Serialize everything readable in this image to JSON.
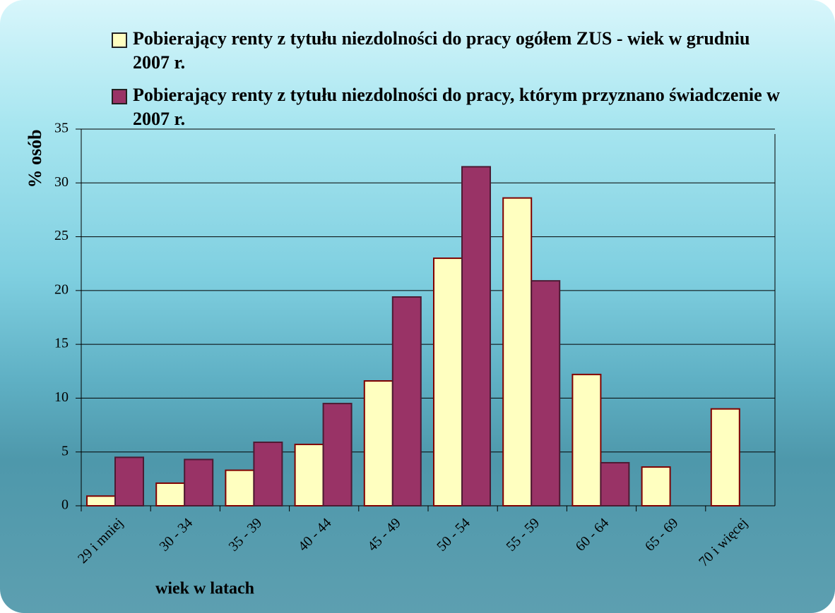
{
  "chart_data": {
    "type": "bar",
    "x_label": "wiek w latach",
    "y_label": "% osób",
    "categories": [
      "29 i mniej",
      "30 - 34",
      "35 - 39",
      "40 - 44",
      "45 - 49",
      "50 - 54",
      "55 - 59",
      "60 - 64",
      "65 - 69",
      "70 i więcej"
    ],
    "series": [
      {
        "name": "Pobierający renty z tytułu niezdolności do pracy ogółem ZUS - wiek w grudniu 2007 r.",
        "color": "#ffffc0",
        "values": [
          0.9,
          2.1,
          3.3,
          5.7,
          11.6,
          23.0,
          28.6,
          12.2,
          3.6,
          9.0
        ]
      },
      {
        "name": "Pobierający renty z tytułu niezdolności do pracy, którym przyznano świadczenie w 2007 r.",
        "color": "#993366",
        "values": [
          4.5,
          4.3,
          5.9,
          9.5,
          19.4,
          31.5,
          20.9,
          4.0,
          null,
          null
        ]
      }
    ],
    "ylim": [
      0,
      35
    ],
    "yticks": [
      0,
      5,
      10,
      15,
      20,
      25,
      30,
      35
    ],
    "grid": true,
    "legend": "top"
  }
}
